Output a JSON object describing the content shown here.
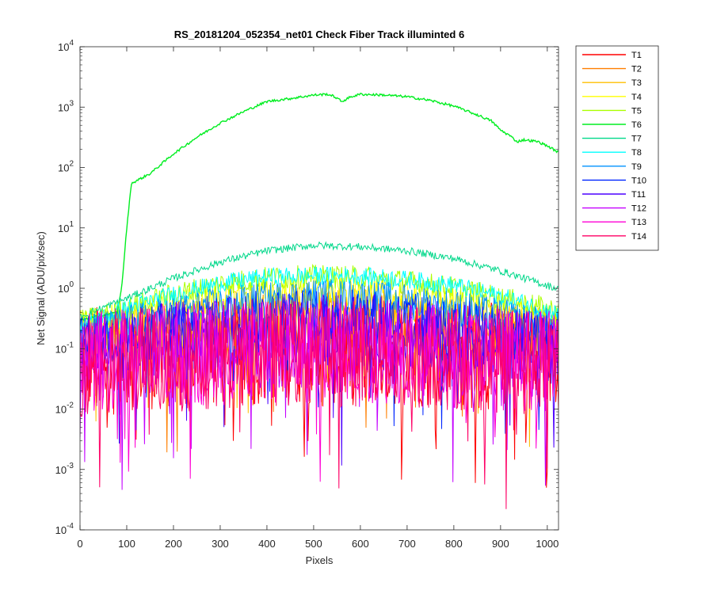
{
  "chart_data": {
    "type": "line",
    "title": "RS_20181204_052354_net01    Check Fiber      Track illuminted 6",
    "xlabel": "Pixels",
    "ylabel": "Net Signal (ADU/pix/sec)",
    "xlim": [
      0,
      1024
    ],
    "ylim": [
      0.0001,
      10000
    ],
    "yscale": "log",
    "x_ticks": [
      0,
      100,
      200,
      300,
      400,
      500,
      600,
      700,
      800,
      900,
      1000
    ],
    "y_ticks": [
      {
        "value": 0.0001,
        "base": "10",
        "exp": "-4"
      },
      {
        "value": 0.001,
        "base": "10",
        "exp": "-3"
      },
      {
        "value": 0.01,
        "base": "10",
        "exp": "-2"
      },
      {
        "value": 0.1,
        "base": "10",
        "exp": "-1"
      },
      {
        "value": 1,
        "base": "10",
        "exp": "0"
      },
      {
        "value": 10,
        "base": "10",
        "exp": "1"
      },
      {
        "value": 100,
        "base": "10",
        "exp": "2"
      },
      {
        "value": 1000,
        "base": "10",
        "exp": "3"
      },
      {
        "value": 10000,
        "base": "10",
        "exp": "4"
      }
    ],
    "grid": false,
    "legend_position": "outside-right-top",
    "series": [
      {
        "name": "T1",
        "color": "#ff0000",
        "x": [
          0,
          100,
          200,
          300,
          400,
          500,
          600,
          700,
          800,
          900,
          1024
        ],
        "y": [
          0.1,
          0.11,
          0.12,
          0.13,
          0.14,
          0.14,
          0.14,
          0.13,
          0.12,
          0.11,
          0.1
        ]
      },
      {
        "name": "T2",
        "color": "#ff7f00",
        "x": [
          0,
          100,
          200,
          300,
          400,
          500,
          600,
          700,
          800,
          900,
          1024
        ],
        "y": [
          0.15,
          0.18,
          0.22,
          0.27,
          0.32,
          0.35,
          0.34,
          0.3,
          0.25,
          0.2,
          0.15
        ]
      },
      {
        "name": "T3",
        "color": "#ffbf00",
        "x": [
          0,
          100,
          200,
          300,
          400,
          500,
          600,
          700,
          800,
          900,
          1024
        ],
        "y": [
          0.18,
          0.22,
          0.3,
          0.38,
          0.45,
          0.48,
          0.46,
          0.4,
          0.33,
          0.26,
          0.2
        ]
      },
      {
        "name": "T4",
        "color": "#ffff00",
        "x": [
          0,
          100,
          200,
          300,
          400,
          500,
          600,
          700,
          800,
          900,
          1024
        ],
        "y": [
          0.28,
          0.4,
          0.6,
          0.8,
          0.95,
          1.0,
          0.95,
          0.85,
          0.7,
          0.5,
          0.35
        ]
      },
      {
        "name": "T5",
        "color": "#aaff00",
        "x": [
          0,
          100,
          200,
          300,
          400,
          500,
          600,
          700,
          800,
          900,
          1024
        ],
        "y": [
          0.3,
          0.5,
          0.85,
          1.3,
          1.6,
          1.7,
          1.65,
          1.4,
          1.1,
          0.75,
          0.45
        ]
      },
      {
        "name": "T6",
        "color": "#00ee20",
        "x": [
          0,
          80,
          90,
          100,
          110,
          150,
          200,
          250,
          300,
          350,
          400,
          450,
          500,
          530,
          545,
          560,
          580,
          600,
          650,
          700,
          750,
          800,
          850,
          880,
          900,
          920,
          935,
          950,
          980,
          1000,
          1024
        ],
        "y": [
          0.3,
          0.4,
          1.2,
          10,
          55,
          80,
          170,
          320,
          550,
          850,
          1250,
          1400,
          1600,
          1650,
          1500,
          1250,
          1500,
          1650,
          1600,
          1500,
          1300,
          1050,
          750,
          600,
          420,
          340,
          270,
          290,
          270,
          230,
          180
        ]
      },
      {
        "name": "T7",
        "color": "#00d88a",
        "x": [
          0,
          100,
          200,
          300,
          400,
          500,
          600,
          700,
          800,
          900,
          1024
        ],
        "y": [
          0.35,
          0.7,
          1.5,
          2.8,
          4.3,
          5.3,
          5.0,
          4.3,
          3.2,
          2.0,
          1.0
        ]
      },
      {
        "name": "T8",
        "color": "#00ffff",
        "x": [
          0,
          100,
          200,
          300,
          400,
          500,
          600,
          700,
          800,
          900,
          1024
        ],
        "y": [
          0.25,
          0.5,
          0.85,
          1.3,
          1.65,
          1.75,
          1.7,
          1.5,
          1.2,
          0.8,
          0.4
        ]
      },
      {
        "name": "T9",
        "color": "#0093ff",
        "x": [
          0,
          100,
          200,
          300,
          400,
          500,
          600,
          700,
          800,
          900,
          1024
        ],
        "y": [
          0.2,
          0.3,
          0.45,
          0.6,
          0.75,
          0.85,
          0.8,
          0.7,
          0.55,
          0.4,
          0.25
        ]
      },
      {
        "name": "T10",
        "color": "#0026ff",
        "x": [
          0,
          100,
          200,
          300,
          400,
          500,
          600,
          700,
          800,
          900,
          1024
        ],
        "y": [
          0.15,
          0.2,
          0.28,
          0.36,
          0.42,
          0.45,
          0.43,
          0.38,
          0.3,
          0.22,
          0.15
        ]
      },
      {
        "name": "T11",
        "color": "#4c00ff",
        "x": [
          0,
          100,
          200,
          300,
          400,
          500,
          600,
          700,
          800,
          900,
          1024
        ],
        "y": [
          0.13,
          0.16,
          0.2,
          0.24,
          0.27,
          0.28,
          0.27,
          0.24,
          0.2,
          0.16,
          0.13
        ]
      },
      {
        "name": "T12",
        "color": "#c400ff",
        "x": [
          0,
          100,
          200,
          300,
          400,
          500,
          600,
          700,
          800,
          900,
          1024
        ],
        "y": [
          0.1,
          0.12,
          0.14,
          0.16,
          0.17,
          0.18,
          0.17,
          0.16,
          0.14,
          0.12,
          0.1
        ]
      },
      {
        "name": "T13",
        "color": "#ff00d4",
        "x": [
          0,
          100,
          200,
          300,
          400,
          500,
          600,
          700,
          800,
          900,
          1024
        ],
        "y": [
          0.09,
          0.1,
          0.11,
          0.12,
          0.13,
          0.13,
          0.13,
          0.12,
          0.11,
          0.1,
          0.09
        ]
      },
      {
        "name": "T14",
        "color": "#ff0066",
        "x": [
          0,
          100,
          200,
          300,
          400,
          500,
          600,
          700,
          800,
          900,
          1024
        ],
        "y": [
          0.09,
          0.1,
          0.11,
          0.12,
          0.13,
          0.13,
          0.13,
          0.12,
          0.11,
          0.1,
          0.09
        ]
      }
    ]
  }
}
